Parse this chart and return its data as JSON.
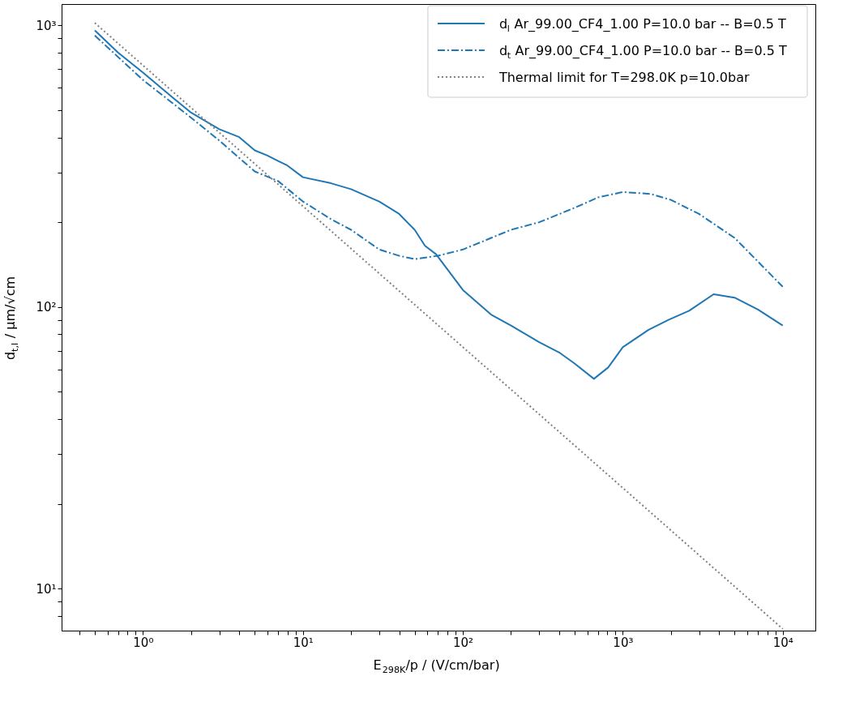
{
  "chart_data": {
    "type": "line",
    "xlabel": "E$_{298K}$/p / (V/cm/bar)",
    "ylabel": "d$_{t,l}$ / μm/√cm",
    "log": "xy",
    "legend": "top right",
    "grid": false,
    "xlim": [
      0.31,
      16000
    ],
    "ylim": [
      7.1,
      1190
    ],
    "xticks": [
      {
        "value": 0.4,
        "label": null
      },
      {
        "value": 0.5,
        "label": null
      },
      {
        "value": 0.6,
        "label": null
      },
      {
        "value": 0.7,
        "label": null
      },
      {
        "value": 0.8,
        "label": null
      },
      {
        "value": 0.9,
        "label": null
      },
      {
        "value": 1,
        "label": "10⁰"
      },
      {
        "value": 2,
        "label": null
      },
      {
        "value": 3,
        "label": null
      },
      {
        "value": 4,
        "label": null
      },
      {
        "value": 5,
        "label": null
      },
      {
        "value": 6,
        "label": null
      },
      {
        "value": 7,
        "label": null
      },
      {
        "value": 8,
        "label": null
      },
      {
        "value": 9,
        "label": null
      },
      {
        "value": 10,
        "label": "10¹"
      },
      {
        "value": 20,
        "label": null
      },
      {
        "value": 30,
        "label": null
      },
      {
        "value": 40,
        "label": null
      },
      {
        "value": 50,
        "label": null
      },
      {
        "value": 60,
        "label": null
      },
      {
        "value": 70,
        "label": null
      },
      {
        "value": 80,
        "label": null
      },
      {
        "value": 90,
        "label": null
      },
      {
        "value": 100,
        "label": "10²"
      },
      {
        "value": 200,
        "label": null
      },
      {
        "value": 300,
        "label": null
      },
      {
        "value": 400,
        "label": null
      },
      {
        "value": 500,
        "label": null
      },
      {
        "value": 600,
        "label": null
      },
      {
        "value": 700,
        "label": null
      },
      {
        "value": 800,
        "label": null
      },
      {
        "value": 900,
        "label": null
      },
      {
        "value": 1000,
        "label": "10³"
      },
      {
        "value": 2000,
        "label": null
      },
      {
        "value": 3000,
        "label": null
      },
      {
        "value": 4000,
        "label": null
      },
      {
        "value": 5000,
        "label": null
      },
      {
        "value": 6000,
        "label": null
      },
      {
        "value": 7000,
        "label": null
      },
      {
        "value": 8000,
        "label": null
      },
      {
        "value": 9000,
        "label": null
      },
      {
        "value": 10000,
        "label": "10⁴"
      }
    ],
    "yticks": [
      {
        "value": 8,
        "label": null
      },
      {
        "value": 9,
        "label": null
      },
      {
        "value": 10,
        "label": "10¹"
      },
      {
        "value": 20,
        "label": null
      },
      {
        "value": 30,
        "label": null
      },
      {
        "value": 40,
        "label": null
      },
      {
        "value": 50,
        "label": null
      },
      {
        "value": 60,
        "label": null
      },
      {
        "value": 70,
        "label": null
      },
      {
        "value": 80,
        "label": null
      },
      {
        "value": 90,
        "label": null
      },
      {
        "value": 100,
        "label": "10²"
      },
      {
        "value": 200,
        "label": null
      },
      {
        "value": 300,
        "label": null
      },
      {
        "value": 400,
        "label": null
      },
      {
        "value": 500,
        "label": null
      },
      {
        "value": 600,
        "label": null
      },
      {
        "value": 700,
        "label": null
      },
      {
        "value": 800,
        "label": null
      },
      {
        "value": 900,
        "label": null
      },
      {
        "value": 1000,
        "label": "10³"
      }
    ],
    "series": [
      {
        "name": "d$_{l}$ Ar_99.00_CF4_1.00 P=10.0 bar -- B=0.5 T",
        "color": "#1f77b4",
        "line_style": "solid",
        "x": [
          0.5,
          0.7,
          1,
          1.5,
          2,
          3,
          4,
          5,
          6,
          7,
          8,
          10,
          15,
          20,
          30,
          40,
          50,
          58,
          68,
          100,
          150,
          200,
          300,
          400,
          500,
          660,
          810,
          1000,
          1450,
          1930,
          2600,
          3700,
          5000,
          7000,
          10000
        ],
        "values": [
          960,
          800,
          680,
          560,
          490,
          428,
          401,
          360,
          345,
          330,
          318,
          289,
          275,
          262,
          237,
          214,
          188,
          165,
          154,
          115,
          94,
          86,
          75,
          69,
          63,
          55.6,
          61,
          72,
          83,
          90,
          97,
          111,
          108,
          98,
          86
        ]
      },
      {
        "name": "d$_{t}$ Ar_99.00_CF4_1.00 P=10.0 bar -- B=0.5 T",
        "color": "#1f77b4",
        "line_style": "dashed",
        "x": [
          0.5,
          1,
          2,
          3,
          5,
          7,
          10,
          15,
          20,
          30,
          40,
          50,
          70,
          100,
          200,
          300,
          500,
          700,
          1000,
          1500,
          2000,
          3000,
          5000,
          7000,
          10000
        ],
        "values": [
          920,
          640,
          470,
          390,
          303,
          280,
          237,
          205,
          188,
          160,
          152,
          148,
          152,
          160,
          188,
          200,
          225,
          245,
          256,
          252,
          240,
          214,
          176,
          145,
          118
        ]
      },
      {
        "name": "Thermal limit for T=298.0K p=10.0bar",
        "color": "#808080",
        "line_style": "dotted",
        "x": [
          0.5,
          1,
          10,
          100,
          1000,
          10000
        ],
        "values": [
          1020,
          721,
          228,
          72.1,
          22.8,
          7.2
        ]
      }
    ]
  }
}
